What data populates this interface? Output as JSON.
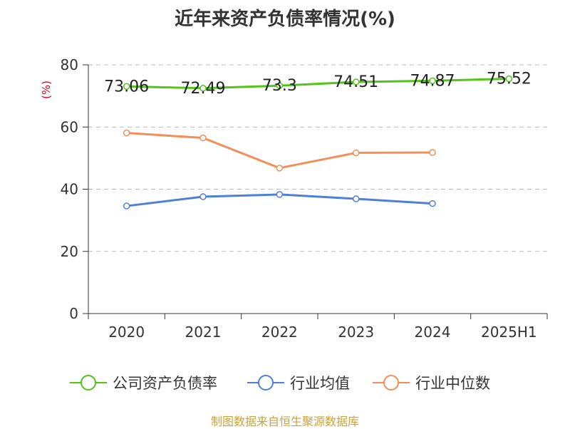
{
  "page": {
    "source_note": "制图数据来自恒生聚源数据库"
  },
  "chart_data": {
    "type": "line",
    "title": "近年来资产负债率情况(%)",
    "ylabel": "(%)",
    "xlabel": "",
    "categories": [
      "2020",
      "2021",
      "2022",
      "2023",
      "2024",
      "2025H1"
    ],
    "ylim": [
      0,
      80
    ],
    "yticks": [
      0,
      20,
      40,
      60,
      80
    ],
    "grid": true,
    "legend_position": "bottom",
    "series": [
      {
        "name": "公司资产负债率",
        "color": "#52c41a",
        "values": [
          73.06,
          72.49,
          73.3,
          74.51,
          74.87,
          75.52
        ],
        "labels": [
          "73.06",
          "72.49",
          "73.3",
          "74.51",
          "74.87",
          "75.52"
        ]
      },
      {
        "name": "行业均值",
        "color": "#4e7fd9",
        "values": [
          34.6,
          37.6,
          38.3,
          36.9,
          35.4,
          null
        ]
      },
      {
        "name": "行业中位数",
        "color": "#f28e58",
        "values": [
          58.1,
          56.5,
          46.8,
          51.7,
          51.8,
          null
        ]
      }
    ]
  }
}
